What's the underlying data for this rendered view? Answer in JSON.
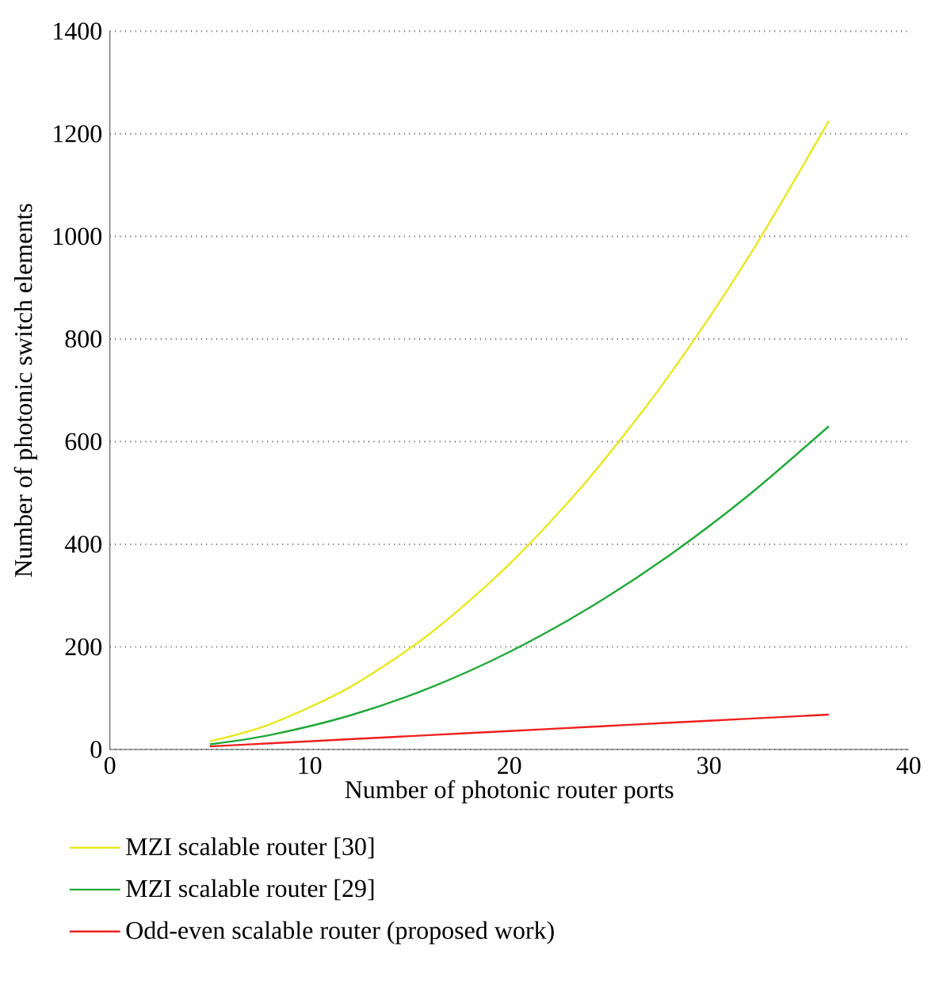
{
  "chart_data": {
    "type": "line",
    "xlabel": "Number of photonic router ports",
    "ylabel": "Number of photonic switch elements",
    "xlim": [
      0,
      40
    ],
    "xticks": [
      0,
      10,
      20,
      30,
      40
    ],
    "ylim": [
      0,
      1400
    ],
    "yticks": [
      0,
      200,
      400,
      600,
      800,
      1000,
      1200,
      1400
    ],
    "grid": "y",
    "legend": "bottom",
    "marker": "none",
    "line_style": "solid",
    "x": [
      5,
      8,
      12,
      16,
      20,
      24,
      28,
      32,
      36
    ],
    "series": [
      {
        "name": "MZI scalable router [30]",
        "color": "#e8e820",
        "values": [
          16,
          49,
          121,
          225,
          361,
          529,
          729,
          961,
          1225
        ]
      },
      {
        "name": "MZI scalable router [29]",
        "color": "#20a838",
        "values": [
          10,
          28,
          66,
          120,
          190,
          276,
          378,
          496,
          630
        ]
      },
      {
        "name": "Odd-even scalable router (proposed work)",
        "color": "#ee2020",
        "values": [
          6,
          12,
          20,
          28,
          36,
          44,
          52,
          60,
          68
        ]
      }
    ]
  }
}
